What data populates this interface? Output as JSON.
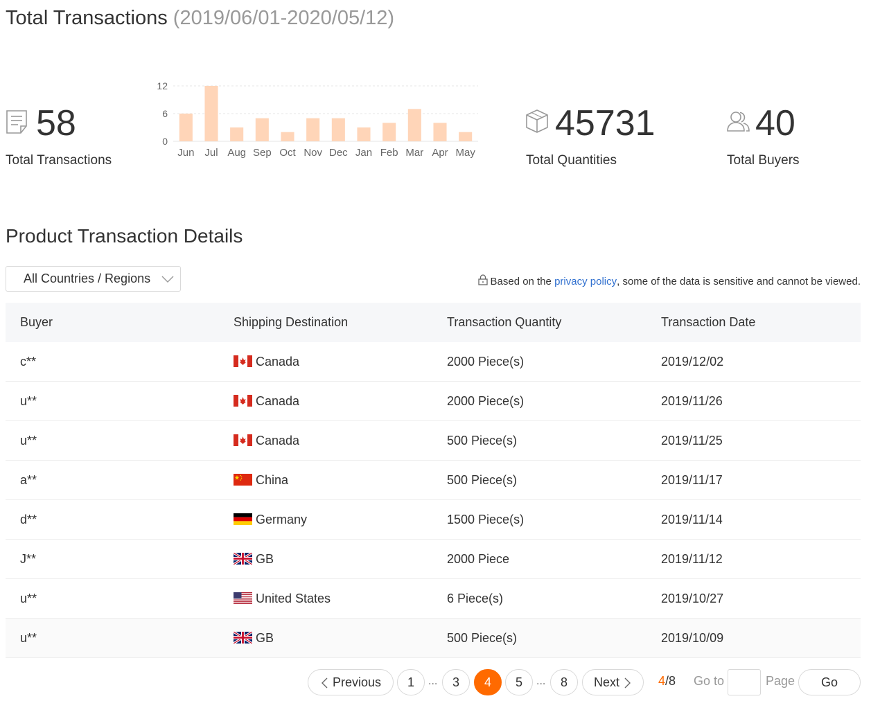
{
  "header": {
    "title": "Total Transactions",
    "date_range": "(2019/06/01-2020/05/12)"
  },
  "stats": {
    "transactions": {
      "value": "58",
      "label": "Total Transactions",
      "icon": "document-icon"
    },
    "quantities": {
      "value": "45731",
      "label": "Total Quantities",
      "icon": "box-icon"
    },
    "buyers": {
      "value": "40",
      "label": "Total Buyers",
      "icon": "users-icon"
    }
  },
  "chart_data": {
    "type": "bar",
    "categories": [
      "Jun",
      "Jul",
      "Aug",
      "Sep",
      "Oct",
      "Nov",
      "Dec",
      "Jan",
      "Feb",
      "Mar",
      "Apr",
      "May"
    ],
    "values": [
      6,
      12,
      3,
      5,
      2,
      5,
      5,
      3,
      4,
      7,
      4,
      2
    ],
    "yticks": [
      0,
      6,
      12
    ],
    "ylim": [
      0,
      12
    ],
    "title": "",
    "xlabel": "",
    "ylabel": "",
    "grid": true,
    "bar_color": "#ffd5b8"
  },
  "details": {
    "title": "Product Transaction Details",
    "filter": {
      "selected": "All Countries / Regions"
    },
    "privacy": {
      "prefix": "Based on the ",
      "link": "privacy policy",
      "suffix": ", some of the data is sensitive and cannot be viewed."
    },
    "columns": [
      "Buyer",
      "Shipping Destination",
      "Transaction Quantity",
      "Transaction Date"
    ],
    "rows": [
      {
        "buyer": "c**",
        "flag": "ca",
        "destination": "Canada",
        "quantity": "2000 Piece(s)",
        "date": "2019/12/02"
      },
      {
        "buyer": "u**",
        "flag": "ca",
        "destination": "Canada",
        "quantity": "2000 Piece(s)",
        "date": "2019/11/26"
      },
      {
        "buyer": "u**",
        "flag": "ca",
        "destination": "Canada",
        "quantity": "500 Piece(s)",
        "date": "2019/11/25"
      },
      {
        "buyer": "a**",
        "flag": "cn",
        "destination": "China",
        "quantity": "500 Piece(s)",
        "date": "2019/11/17"
      },
      {
        "buyer": "d**",
        "flag": "de",
        "destination": "Germany",
        "quantity": "1500 Piece(s)",
        "date": "2019/11/14"
      },
      {
        "buyer": "J**",
        "flag": "gb",
        "destination": "GB",
        "quantity": "2000 Piece",
        "date": "2019/11/12"
      },
      {
        "buyer": "u**",
        "flag": "us",
        "destination": "United States",
        "quantity": "6 Piece(s)",
        "date": "2019/10/27"
      },
      {
        "buyer": "u**",
        "flag": "gb",
        "destination": "GB",
        "quantity": "500 Piece(s)",
        "date": "2019/10/09"
      }
    ]
  },
  "pagination": {
    "previous": "Previous",
    "next": "Next",
    "pages": [
      "1",
      "3",
      "4",
      "5",
      "8"
    ],
    "ellipsis": "...",
    "current": "4",
    "total": "/8",
    "goto_label": "Go to",
    "page_label": "Page",
    "go": "Go"
  },
  "colors": {
    "accent": "#ff6a00",
    "link": "#2f6fcf",
    "bar": "#ffd5b8",
    "header_bg": "#f6f7f9"
  }
}
